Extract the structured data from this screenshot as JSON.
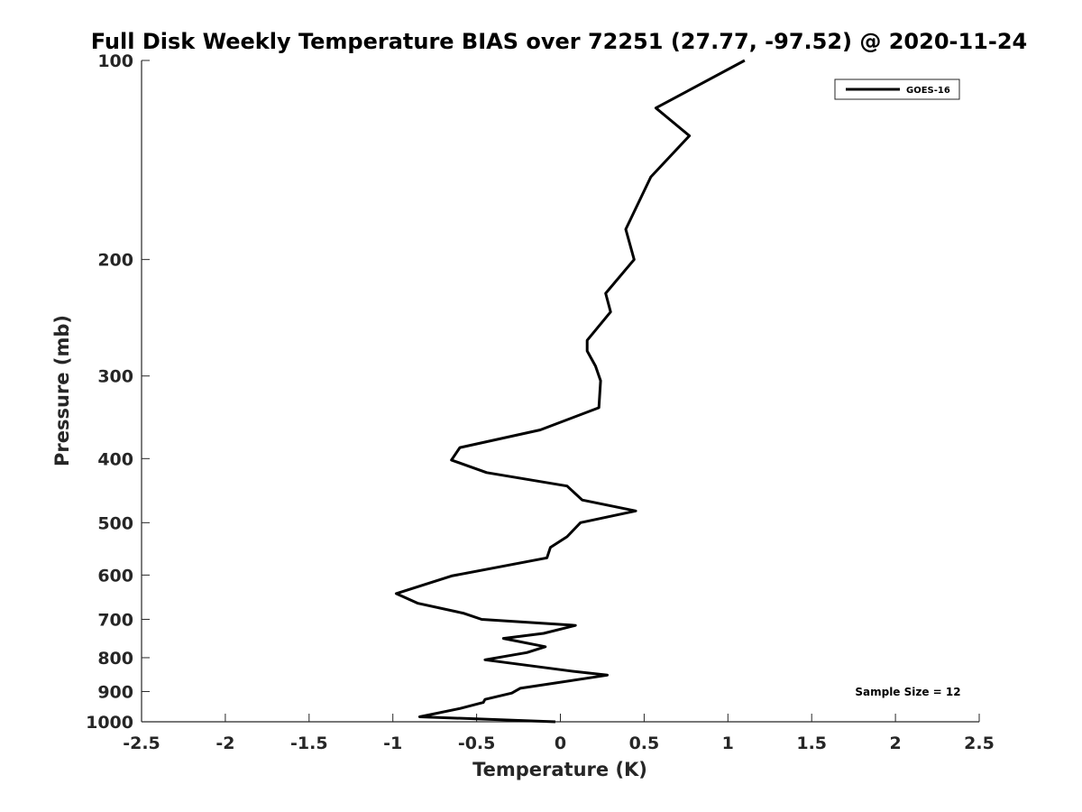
{
  "chart_data": {
    "type": "line",
    "title": "Full Disk Weekly Temperature BIAS over 72251 (27.77, -97.52) @ 2020-11-24",
    "xlabel": "Temperature (K)",
    "ylabel": "Pressure (mb)",
    "xlim": [
      -2.5,
      2.5
    ],
    "ylim": [
      100,
      1000
    ],
    "y_scale": "log",
    "y_reversed": true,
    "grid": false,
    "x_ticks": [
      -2.5,
      -2,
      -1.5,
      -1,
      -0.5,
      0,
      0.5,
      1,
      1.5,
      2,
      2.5
    ],
    "x_tick_labels": [
      "-2.5",
      "-2",
      "-1.5",
      "-1",
      "-0.5",
      "0",
      "0.5",
      "1",
      "1.5",
      "2",
      "2.5"
    ],
    "y_ticks": [
      100,
      200,
      300,
      400,
      500,
      600,
      700,
      800,
      900,
      1000
    ],
    "y_tick_labels": [
      "100",
      "200",
      "300",
      "400",
      "500",
      "600",
      "700",
      "800",
      "900",
      "1000"
    ],
    "legend": {
      "position": "top-right",
      "entries": [
        "GOES-16"
      ]
    },
    "annotation": "Sample Size = 12",
    "series": [
      {
        "name": "GOES-16",
        "color": "#000000",
        "points": [
          {
            "t": 1.1,
            "p": 100
          },
          {
            "t": 0.57,
            "p": 118
          },
          {
            "t": 0.77,
            "p": 130
          },
          {
            "t": 0.54,
            "p": 150
          },
          {
            "t": 0.39,
            "p": 180
          },
          {
            "t": 0.44,
            "p": 200
          },
          {
            "t": 0.27,
            "p": 225
          },
          {
            "t": 0.3,
            "p": 240
          },
          {
            "t": 0.16,
            "p": 265
          },
          {
            "t": 0.16,
            "p": 275
          },
          {
            "t": 0.21,
            "p": 290
          },
          {
            "t": 0.24,
            "p": 305
          },
          {
            "t": 0.23,
            "p": 335
          },
          {
            "t": -0.12,
            "p": 362
          },
          {
            "t": -0.6,
            "p": 385
          },
          {
            "t": -0.65,
            "p": 402
          },
          {
            "t": -0.44,
            "p": 420
          },
          {
            "t": 0.04,
            "p": 440
          },
          {
            "t": 0.13,
            "p": 462
          },
          {
            "t": 0.45,
            "p": 480
          },
          {
            "t": 0.12,
            "p": 500
          },
          {
            "t": 0.04,
            "p": 525
          },
          {
            "t": -0.06,
            "p": 545
          },
          {
            "t": -0.08,
            "p": 565
          },
          {
            "t": -0.65,
            "p": 602
          },
          {
            "t": -0.98,
            "p": 640
          },
          {
            "t": -0.85,
            "p": 662
          },
          {
            "t": -0.58,
            "p": 685
          },
          {
            "t": -0.47,
            "p": 700
          },
          {
            "t": 0.09,
            "p": 715
          },
          {
            "t": -0.1,
            "p": 735
          },
          {
            "t": -0.34,
            "p": 748
          },
          {
            "t": -0.09,
            "p": 770
          },
          {
            "t": -0.2,
            "p": 786
          },
          {
            "t": -0.45,
            "p": 806
          },
          {
            "t": 0.06,
            "p": 838
          },
          {
            "t": 0.28,
            "p": 850
          },
          {
            "t": -0.24,
            "p": 890
          },
          {
            "t": -0.29,
            "p": 905
          },
          {
            "t": -0.45,
            "p": 925
          },
          {
            "t": -0.46,
            "p": 935
          },
          {
            "t": -0.6,
            "p": 955
          },
          {
            "t": -0.84,
            "p": 983
          },
          {
            "t": -0.03,
            "p": 1000
          }
        ]
      }
    ]
  }
}
